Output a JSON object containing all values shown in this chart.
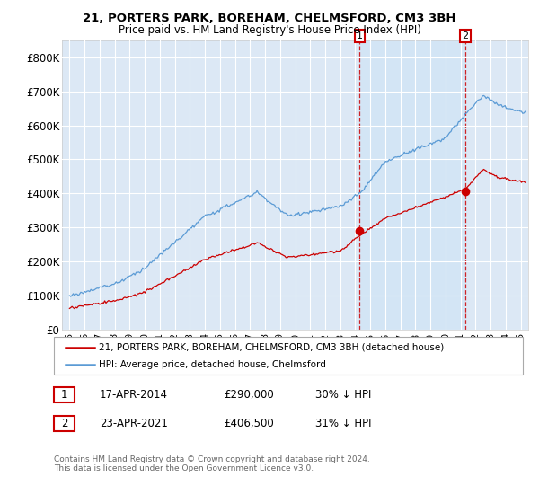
{
  "title1": "21, PORTERS PARK, BOREHAM, CHELMSFORD, CM3 3BH",
  "title2": "Price paid vs. HM Land Registry's House Price Index (HPI)",
  "background_color": "#ffffff",
  "plot_bg_color": "#dce8f5",
  "grid_color": "#ffffff",
  "sale1_date": 2014.29,
  "sale1_value": 290000,
  "sale2_date": 2021.31,
  "sale2_value": 406500,
  "legend_entry1": "21, PORTERS PARK, BOREHAM, CHELMSFORD, CM3 3BH (detached house)",
  "legend_entry2": "HPI: Average price, detached house, Chelmsford",
  "annotation1_label": "1",
  "annotation1_date": "17-APR-2014",
  "annotation1_price": "£290,000",
  "annotation1_hpi": "30% ↓ HPI",
  "annotation2_label": "2",
  "annotation2_date": "23-APR-2021",
  "annotation2_price": "£406,500",
  "annotation2_hpi": "31% ↓ HPI",
  "footer": "Contains HM Land Registry data © Crown copyright and database right 2024.\nThis data is licensed under the Open Government Licence v3.0.",
  "hpi_color": "#5b9bd5",
  "price_color": "#cc0000",
  "dashed_color": "#cc0000",
  "shade_color": "#d0e4f5",
  "ylim_max": 850000,
  "yticks": [
    0,
    100000,
    200000,
    300000,
    400000,
    500000,
    600000,
    700000,
    800000
  ],
  "ytick_labels": [
    "£0",
    "£100K",
    "£200K",
    "£300K",
    "£400K",
    "£500K",
    "£600K",
    "£700K",
    "£800K"
  ],
  "xmin": 1994.5,
  "xmax": 2025.5
}
